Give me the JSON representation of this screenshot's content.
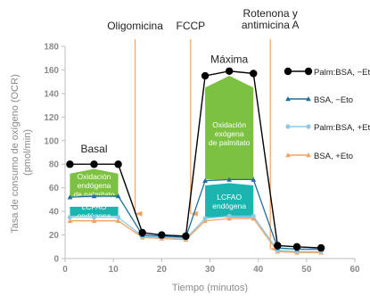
{
  "chart_data": {
    "type": "line",
    "xlabel": "Tiempo (minutos)",
    "ylabel": [
      "Tasa de consumo de oxígeno (OCR)",
      "(pmol/min)"
    ],
    "xlim": [
      0,
      60
    ],
    "ylim": [
      0,
      180
    ],
    "x_ticks": [
      0,
      10,
      20,
      30,
      40,
      50,
      60
    ],
    "y_ticks": [
      0,
      20,
      40,
      60,
      80,
      100,
      120,
      140,
      160,
      180
    ],
    "grid": false,
    "legend_position": "right",
    "series": [
      {
        "name": "Palm:BSA, −Eto",
        "color": "#000000",
        "marker": "circle",
        "points": [
          [
            1,
            80
          ],
          [
            6,
            80
          ],
          [
            11,
            80
          ],
          [
            16,
            22
          ],
          [
            20,
            20
          ],
          [
            25,
            19
          ],
          [
            29,
            155
          ],
          [
            34,
            159
          ],
          [
            39,
            157
          ],
          [
            44,
            11
          ],
          [
            48,
            10
          ],
          [
            53,
            9
          ]
        ]
      },
      {
        "name": "BSA, −Eto",
        "color": "#1f6f9e",
        "marker": "triangle",
        "points": [
          [
            1,
            52
          ],
          [
            6,
            53
          ],
          [
            11,
            53
          ],
          [
            16,
            20
          ],
          [
            20,
            19
          ],
          [
            25,
            18
          ],
          [
            29,
            66
          ],
          [
            34,
            67
          ],
          [
            39,
            67
          ],
          [
            44,
            9
          ],
          [
            48,
            8
          ],
          [
            53,
            8
          ]
        ]
      },
      {
        "name": "Palm:BSA, +Eto",
        "color": "#8ecae6",
        "marker": "circle",
        "points": [
          [
            1,
            35
          ],
          [
            6,
            35
          ],
          [
            11,
            35
          ],
          [
            16,
            19
          ],
          [
            20,
            18
          ],
          [
            25,
            17
          ],
          [
            29,
            34
          ],
          [
            34,
            36
          ],
          [
            39,
            36
          ],
          [
            44,
            7
          ],
          [
            48,
            6
          ],
          [
            53,
            6
          ]
        ]
      },
      {
        "name": "BSA, +Eto",
        "color": "#f4a261",
        "marker": "triangle",
        "points": [
          [
            1,
            32
          ],
          [
            6,
            32
          ],
          [
            11,
            32
          ],
          [
            16,
            18
          ],
          [
            20,
            17
          ],
          [
            25,
            16
          ],
          [
            29,
            32
          ],
          [
            34,
            34
          ],
          [
            39,
            34
          ],
          [
            44,
            6
          ],
          [
            48,
            5
          ],
          [
            53,
            5
          ]
        ]
      }
    ],
    "annotations": {
      "injections": [
        {
          "label": [
            "Oligomicina"
          ],
          "x": 14.5
        },
        {
          "label": [
            "FCCP"
          ],
          "x": 26
        },
        {
          "label": [
            "Rotenona y",
            "antimicina A"
          ],
          "x": 42.5
        }
      ],
      "phase_labels": [
        {
          "label": "Basal",
          "x": 6,
          "y": 90
        },
        {
          "label": "Máxima",
          "x": 34,
          "y": 166
        }
      ],
      "regions": [
        {
          "name": "oxid-palmitate-basal",
          "color": "#7cc142",
          "label": [
            "Oxidación",
            "endógena",
            "de palmitato"
          ],
          "x0": 1,
          "x1": 11,
          "y0": 52,
          "y_left": 72,
          "y_peak": 76,
          "y_right": 72
        },
        {
          "name": "lcfao-basal",
          "color": "#1ab5ae",
          "label": [
            "LCFAO",
            "endógena"
          ],
          "x0": 1,
          "x1": 11,
          "y0": 36,
          "y_left": 44,
          "y_peak": 44,
          "y_right": 44
        },
        {
          "name": "oxid-palmitate-max",
          "color": "#7cc142",
          "label": [
            "Oxidación",
            "exógena",
            "de palmitato"
          ],
          "x0": 29,
          "x1": 39,
          "y0": 67,
          "y_left": 145,
          "y_peak": 155,
          "y_right": 145
        },
        {
          "name": "lcfao-max",
          "color": "#1ab5ae",
          "label": [
            "LCFAO",
            "endógena"
          ],
          "x0": 29,
          "x1": 39,
          "y0": 35,
          "y_left": 62,
          "y_peak": 64,
          "y_right": 62
        }
      ]
    }
  }
}
